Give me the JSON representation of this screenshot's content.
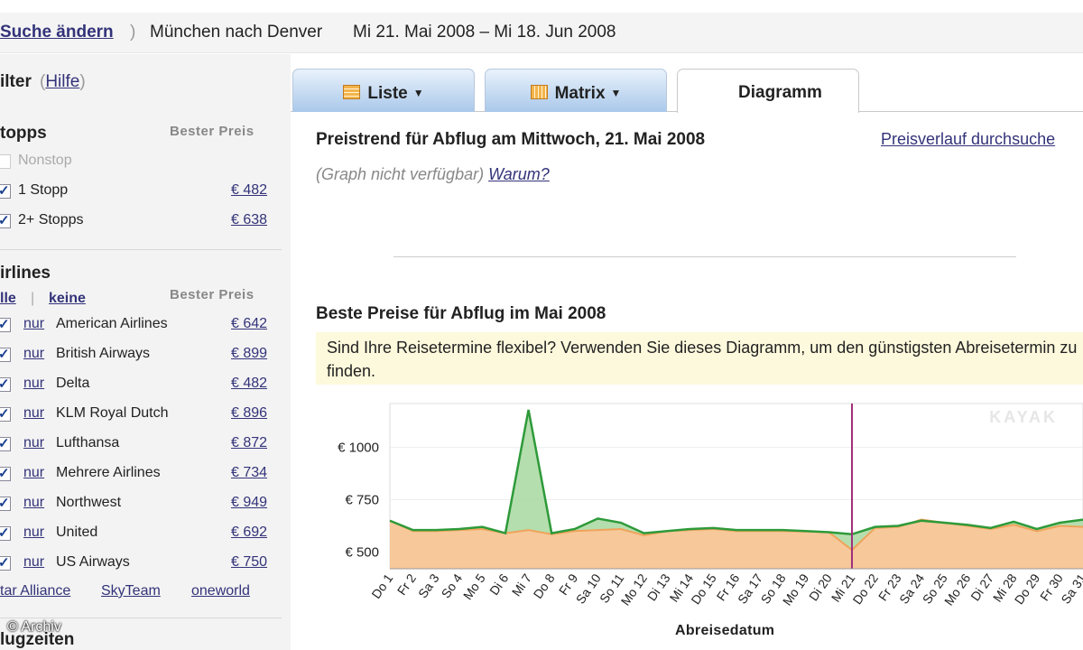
{
  "topbar": {
    "change_label": "Suche ändern",
    "paren": ")",
    "route": "München nach Denver",
    "dates": "Mi 21. Mai 2008 – Mi 18. Jun 2008"
  },
  "filter": {
    "title": "ilter",
    "help_open": "(",
    "help_label": "Hilfe",
    "help_close": ")"
  },
  "stops": {
    "title": "topps",
    "price_header": "Bester Preis",
    "items": [
      {
        "label": "Nonstop",
        "price": "",
        "checked": false,
        "disabled": true
      },
      {
        "label": "1 Stopp",
        "price": "€ 482",
        "checked": true,
        "disabled": false
      },
      {
        "label": "2+ Stopps",
        "price": "€ 638",
        "checked": true,
        "disabled": false
      }
    ]
  },
  "airlines": {
    "title": "irlines",
    "all_label": "lle",
    "divider": "|",
    "none_label": "keine",
    "price_header": "Bester Preis",
    "only_label": "nur",
    "items": [
      {
        "label": "American Airlines",
        "price": "€ 642"
      },
      {
        "label": "British Airways",
        "price": "€ 899"
      },
      {
        "label": "Delta",
        "price": "€ 482"
      },
      {
        "label": "KLM Royal Dutch",
        "price": "€ 896"
      },
      {
        "label": "Lufthansa",
        "price": "€ 872"
      },
      {
        "label": "Mehrere Airlines",
        "price": "€ 734"
      },
      {
        "label": "Northwest",
        "price": "€ 949"
      },
      {
        "label": "United",
        "price": "€ 692"
      },
      {
        "label": "US Airways",
        "price": "€ 750"
      }
    ],
    "alliances": [
      "tar Alliance",
      "SkyTeam",
      "oneworld"
    ]
  },
  "flugzeiten": "lugzeiten",
  "watermark": "© Archiv",
  "tabs": [
    {
      "label": "Liste",
      "dropdown": true,
      "active": false
    },
    {
      "label": "Matrix",
      "dropdown": true,
      "active": false
    },
    {
      "label": "Diagramm",
      "dropdown": false,
      "active": true
    }
  ],
  "trend": {
    "title": "Preistrend für Abflug am Mittwoch, 21. Mai 2008",
    "search_link": "Preisverlauf durchsuche",
    "na_text": "(Graph nicht verfügbar)",
    "why_label": "Warum?"
  },
  "best": {
    "title": "Beste Preise für Abflug im Mai 2008",
    "flex_text": "Sind Ihre Reisetermine flexibel? Verwenden Sie dieses Diagramm, um den günstigsten Abreisetermin zu finden."
  },
  "chart_data": {
    "type": "area",
    "xlabel": "Abreisedatum",
    "ylabel": "",
    "yticks": [
      "€ 500",
      "€ 750",
      "€ 1000"
    ],
    "ylim": [
      420,
      1210
    ],
    "watermark": "KAYAK",
    "marker_category": "Mi 21",
    "categories": [
      "Do 1",
      "Fr 2",
      "Sa 3",
      "So 4",
      "Mo 5",
      "Di 6",
      "Mi 7",
      "Do 8",
      "Fr 9",
      "Sa 10",
      "So 11",
      "Mo 12",
      "Di 13",
      "Mi 14",
      "Do 15",
      "Fr 16",
      "Sa 17",
      "So 18",
      "Mo 19",
      "Di 20",
      "Mi 21",
      "Do 22",
      "Fr 23",
      "Sa 24",
      "So 25",
      "Mo 26",
      "Di 27",
      "Mi 28",
      "Do 29",
      "Fr 30",
      "Sa 31"
    ],
    "series": [
      {
        "values": [
          650,
          605,
          605,
          610,
          620,
          590,
          1180,
          590,
          610,
          660,
          640,
          590,
          600,
          610,
          615,
          605,
          605,
          605,
          600,
          595,
          585,
          620,
          625,
          650,
          640,
          630,
          615,
          645,
          610,
          640,
          655
        ],
        "color": "#2e9a3a"
      },
      {
        "values": [
          650,
          600,
          600,
          605,
          610,
          590,
          605,
          585,
          600,
          605,
          610,
          580,
          600,
          605,
          610,
          600,
          600,
          600,
          598,
          595,
          510,
          615,
          620,
          655,
          640,
          625,
          610,
          630,
          600,
          625,
          620
        ],
        "color": "#f0a35a"
      }
    ]
  }
}
